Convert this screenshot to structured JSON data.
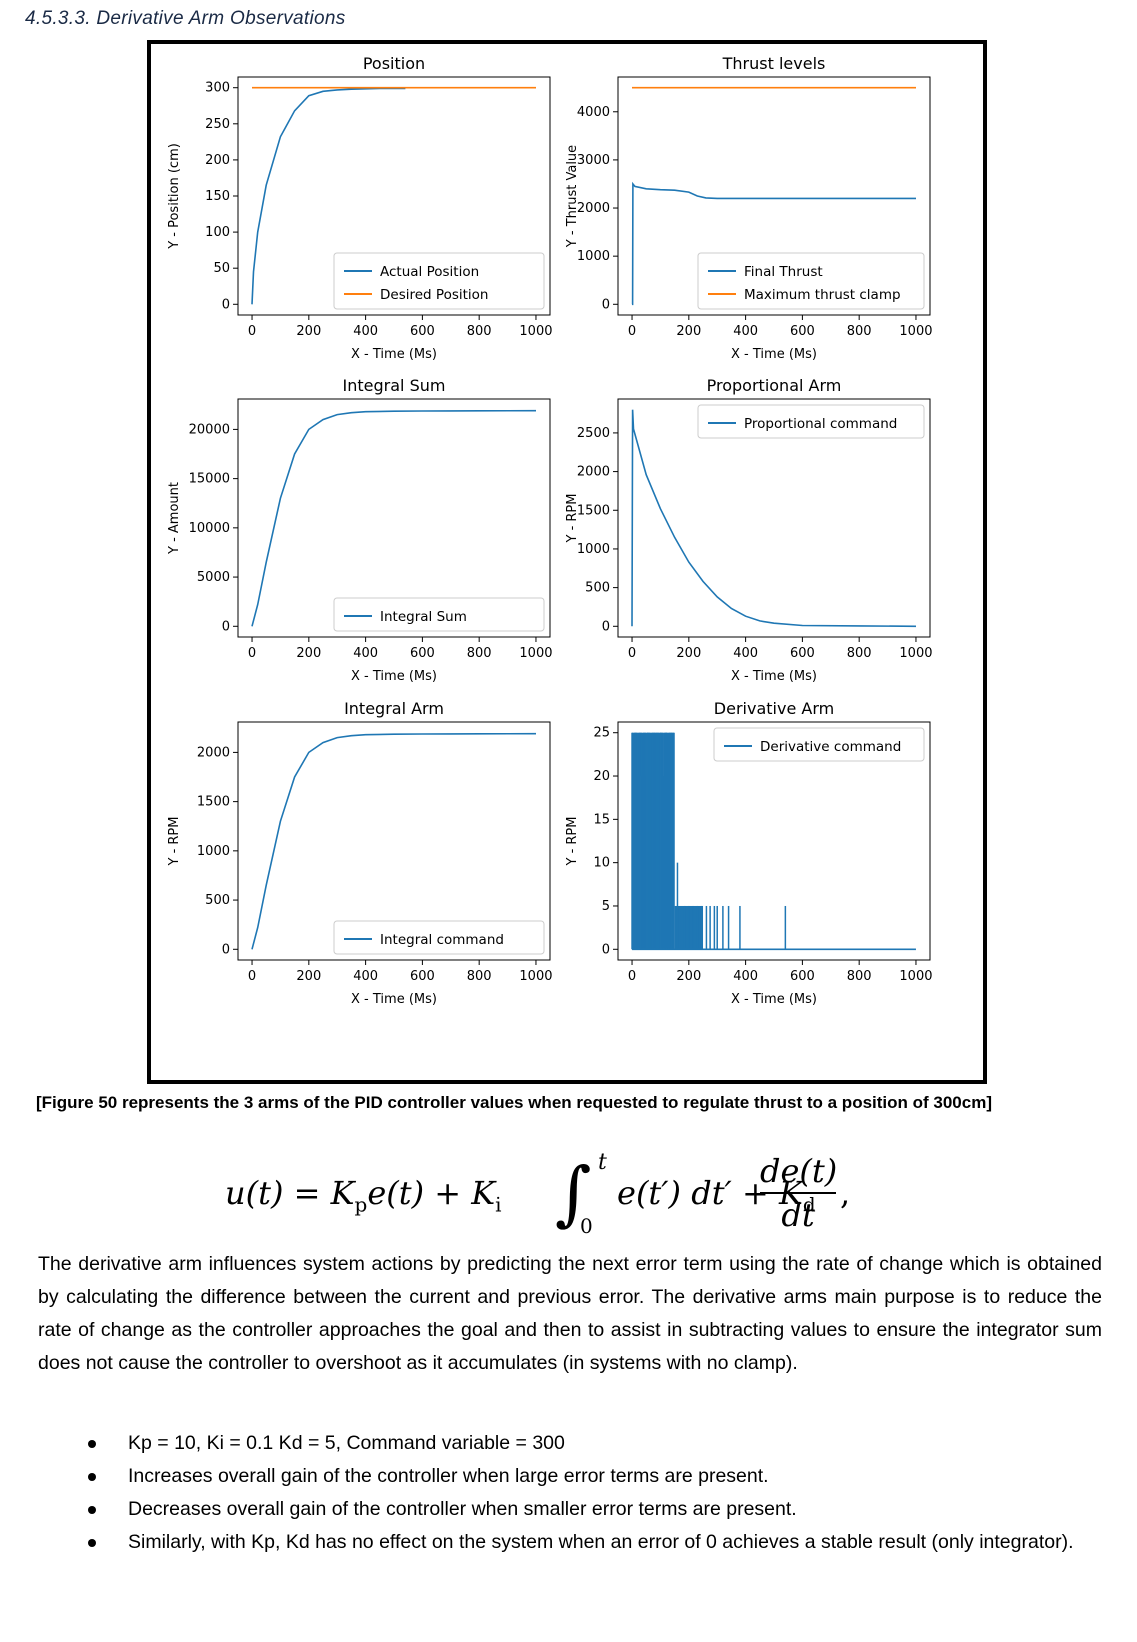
{
  "heading": "4.5.3.3. Derivative Arm Observations",
  "caption": "[Figure 50 represents the 3 arms of the PID controller values when requested to regulate thrust to a position of 300cm]",
  "formula": {
    "lhs": "u(t) = K",
    "kp_sub": "p",
    "after_kp": "e(t) + K",
    "ki_sub": "i",
    "integral_symbol": "∫",
    "upper_limit": "t",
    "lower_limit": "0",
    "integrand": "e(t′) dt′ + K",
    "kd_sub": "d",
    "frac_num": "de(t)",
    "frac_den": "dt",
    "comma": ","
  },
  "paragraph": "The derivative arm influences system actions by predicting the next error term using the rate of change which is obtained by calculating the difference between the current and previous error. The derivative arms main purpose is to reduce the rate of change as the controller approaches the goal and then to assist in subtracting values to ensure the integrator sum does not cause the controller to overshoot as it accumulates (in systems with no clamp).",
  "bullets": [
    "Kp = 10, Ki = 0.1 Kd = 5, Command variable = 300",
    "Increases overall gain of the controller when large error terms are present.",
    "Decreases overall gain of the controller when smaller error terms are present.",
    "Similarly, with Kp, Kd has no effect on the system when an error of 0 achieves a stable result (only integrator)."
  ],
  "colors": {
    "blue": "#1f77b4",
    "orange": "#ff7f0e",
    "heading": "#1a2a45"
  },
  "chart_data": [
    {
      "type": "line",
      "title": "Position",
      "xlabel": "X - Time (Ms)",
      "ylabel": "Y - Position (cm)",
      "xlim": [
        0,
        1000
      ],
      "ylim": [
        0,
        300
      ],
      "xticks": [
        0,
        200,
        400,
        600,
        800,
        1000
      ],
      "yticks": [
        0,
        50,
        100,
        150,
        200,
        250,
        300
      ],
      "legend": "bottom-right",
      "series": [
        {
          "name": "Actual Position",
          "color": "#1f77b4",
          "x": [
            0,
            5,
            20,
            50,
            100,
            150,
            200,
            250,
            300,
            350,
            400,
            450,
            500,
            540
          ],
          "y": [
            0,
            45,
            100,
            165,
            232,
            268,
            289,
            295,
            297,
            298,
            298.5,
            299,
            299,
            299
          ]
        },
        {
          "name": "Desired Position",
          "color": "#ff7f0e",
          "x": [
            0,
            1000
          ],
          "y": [
            300,
            300
          ]
        }
      ]
    },
    {
      "type": "line",
      "title": "Thrust levels",
      "xlabel": "X - Time (Ms)",
      "ylabel": "Y - Thrust Value",
      "xlim": [
        0,
        1000
      ],
      "ylim": [
        0,
        4500
      ],
      "xticks": [
        0,
        200,
        400,
        600,
        800,
        1000
      ],
      "yticks": [
        0,
        1000,
        2000,
        3000,
        4000
      ],
      "legend": "bottom-right",
      "series": [
        {
          "name": "Final Thrust",
          "color": "#1f77b4",
          "x": [
            0,
            2,
            3,
            10,
            50,
            100,
            150,
            200,
            230,
            260,
            300,
            400,
            600,
            800,
            1000
          ],
          "y": [
            0,
            0,
            2500,
            2450,
            2400,
            2380,
            2370,
            2330,
            2250,
            2210,
            2200,
            2200,
            2200,
            2200,
            2200
          ]
        },
        {
          "name": "Maximum thrust clamp",
          "color": "#ff7f0e",
          "x": [
            0,
            1000
          ],
          "y": [
            4500,
            4500
          ]
        }
      ]
    },
    {
      "type": "line",
      "title": "Integral Sum",
      "xlabel": "X - Time (Ms)",
      "ylabel": "Y - Amount",
      "xlim": [
        0,
        1000
      ],
      "ylim": [
        0,
        22000
      ],
      "xticks": [
        0,
        200,
        400,
        600,
        800,
        1000
      ],
      "yticks": [
        0,
        5000,
        10000,
        15000,
        20000
      ],
      "legend": "bottom-right",
      "series": [
        {
          "name": "Integral Sum",
          "color": "#1f77b4",
          "x": [
            0,
            20,
            50,
            100,
            150,
            200,
            250,
            300,
            350,
            400,
            500,
            600,
            700,
            800,
            1000
          ],
          "y": [
            0,
            2200,
            6500,
            13000,
            17500,
            20000,
            21000,
            21500,
            21700,
            21800,
            21850,
            21870,
            21880,
            21890,
            21900
          ]
        }
      ]
    },
    {
      "type": "line",
      "title": "Proportional Arm",
      "xlabel": "X - Time (Ms)",
      "ylabel": "Y - RPM",
      "xlim": [
        0,
        1000
      ],
      "ylim": [
        0,
        2800
      ],
      "xticks": [
        0,
        200,
        400,
        600,
        800,
        1000
      ],
      "yticks": [
        0,
        500,
        1000,
        1500,
        2000,
        2500
      ],
      "legend": "top-right",
      "series": [
        {
          "name": "Proportional command",
          "color": "#1f77b4",
          "x": [
            0,
            2,
            5,
            50,
            100,
            150,
            200,
            250,
            300,
            350,
            400,
            450,
            500,
            600,
            800,
            1000
          ],
          "y": [
            0,
            2800,
            2550,
            1960,
            1520,
            1150,
            830,
            580,
            380,
            230,
            130,
            70,
            40,
            10,
            5,
            0
          ]
        }
      ]
    },
    {
      "type": "line",
      "title": "Integral Arm",
      "xlabel": "X - Time (Ms)",
      "ylabel": "Y - RPM",
      "xlim": [
        0,
        1000
      ],
      "ylim": [
        0,
        2200
      ],
      "xticks": [
        0,
        200,
        400,
        600,
        800,
        1000
      ],
      "yticks": [
        0,
        500,
        1000,
        1500,
        2000
      ],
      "legend": "bottom-right",
      "series": [
        {
          "name": "Integral command",
          "color": "#1f77b4",
          "x": [
            0,
            20,
            50,
            100,
            150,
            200,
            250,
            300,
            350,
            400,
            500,
            600,
            700,
            800,
            1000
          ],
          "y": [
            0,
            220,
            650,
            1300,
            1750,
            2000,
            2100,
            2150,
            2170,
            2180,
            2185,
            2187,
            2188,
            2189,
            2190
          ]
        }
      ]
    },
    {
      "type": "line",
      "title": "Derivative Arm",
      "xlabel": "X - Time (Ms)",
      "ylabel": "Y - RPM",
      "xlim": [
        0,
        1000
      ],
      "ylim": [
        0,
        25
      ],
      "xticks": [
        0,
        200,
        400,
        600,
        800,
        1000
      ],
      "yticks": [
        0,
        5,
        10,
        15,
        20,
        25
      ],
      "legend": "top-right",
      "series": [
        {
          "name": "Derivative command",
          "color": "#1f77b4",
          "dense_band": {
            "x_start": 0,
            "x_end": 150,
            "y_low": 0,
            "y_high": 25
          },
          "mid_band": {
            "x_start": 150,
            "x_end": 250,
            "y_low": 0,
            "y_high": 5
          },
          "spikes_x": [
            10,
            30,
            55,
            80,
            100,
            120,
            140,
            160,
            185,
            200,
            215,
            230,
            245,
            262,
            275,
            290,
            300,
            320,
            340,
            380,
            540
          ],
          "spikes_y": [
            25,
            20,
            25,
            25,
            25,
            25,
            25,
            10,
            5,
            5,
            5,
            5,
            5,
            5,
            5,
            5,
            5,
            5,
            5,
            5,
            5
          ],
          "baseline": 0
        }
      ]
    }
  ]
}
